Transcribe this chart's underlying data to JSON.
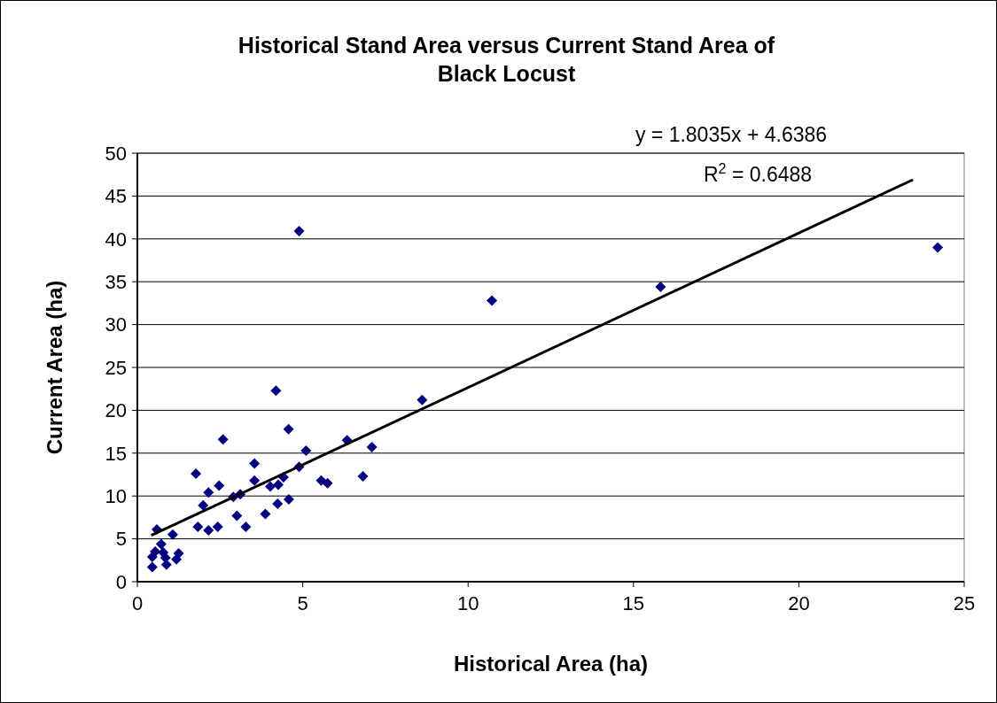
{
  "chart_data": {
    "type": "scatter",
    "title": "Historical Stand Area versus Current Stand Area of Black Locust",
    "xlabel": "Historical Area (ha)",
    "ylabel": "Current Area (ha)",
    "annotations": [
      "y = 1.8035x + 4.6386",
      "R$^{2}$ = 0.6488"
    ],
    "xlim": [
      0,
      25
    ],
    "xticks": [
      0,
      5,
      10,
      15,
      20,
      25
    ],
    "ylim": [
      0,
      50
    ],
    "yticks": [
      0,
      5,
      10,
      15,
      20,
      25,
      30,
      35,
      40,
      45,
      50
    ],
    "grid": "y",
    "series": [
      {
        "color": "#000080",
        "marker": "diamond",
        "x": [
          0.45,
          0.45,
          0.54,
          0.59,
          0.72,
          0.78,
          0.85,
          0.88,
          1.07,
          1.18,
          1.25,
          1.77,
          1.83,
          1.99,
          2.15,
          2.15,
          2.43,
          2.47,
          2.59,
          2.9,
          3.01,
          3.11,
          3.28,
          3.54,
          3.54,
          3.87,
          4.02,
          4.19,
          4.24,
          4.26,
          4.42,
          4.57,
          4.58,
          4.89,
          5.1,
          5.56,
          5.75,
          6.34,
          6.82,
          7.09,
          4.89,
          8.61,
          10.72,
          15.82,
          24.2
        ],
        "values": [
          1.7,
          2.9,
          3.5,
          6.1,
          4.4,
          3.4,
          2.8,
          2.0,
          5.5,
          2.6,
          3.3,
          12.6,
          6.4,
          8.9,
          10.4,
          6.0,
          6.4,
          11.2,
          16.6,
          9.9,
          7.7,
          10.2,
          6.4,
          13.8,
          11.8,
          7.9,
          11.1,
          22.3,
          9.1,
          11.3,
          12.2,
          17.8,
          9.6,
          13.4,
          15.3,
          11.8,
          11.5,
          16.5,
          12.3,
          15.7,
          40.9,
          21.2,
          32.8,
          34.4,
          39.0
        ]
      },
      {
        "type": "line",
        "color": "#000000",
        "x": [
          0.42,
          23.45
        ],
        "values": [
          5.4,
          46.9
        ],
        "marker": "none"
      }
    ]
  }
}
